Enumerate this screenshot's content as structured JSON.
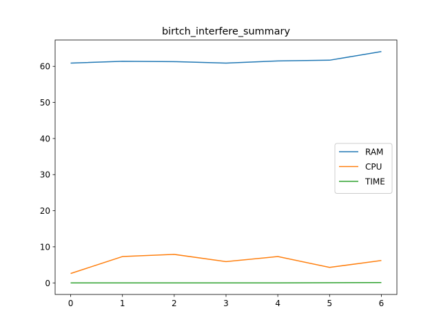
{
  "chart_data": {
    "type": "line",
    "title": "birtch_interfere_summary",
    "xlabel": "",
    "ylabel": "",
    "x": [
      0,
      1,
      2,
      3,
      4,
      5,
      6
    ],
    "xticks": [
      0,
      1,
      2,
      3,
      4,
      5,
      6
    ],
    "yticks": [
      0,
      10,
      20,
      30,
      40,
      50,
      60
    ],
    "xlim": [
      -0.3,
      6.3
    ],
    "ylim": [
      -3.2,
      67.3
    ],
    "grid": false,
    "legend_position": "center-right",
    "series": [
      {
        "name": "RAM",
        "color": "#1f77b4",
        "values": [
          60.9,
          61.4,
          61.3,
          60.9,
          61.5,
          61.7,
          64.1
        ]
      },
      {
        "name": "CPU",
        "color": "#ff7f0e",
        "values": [
          2.6,
          7.3,
          7.9,
          5.9,
          7.3,
          4.3,
          6.2
        ]
      },
      {
        "name": "TIME",
        "color": "#2ca02c",
        "values": [
          0.0,
          0.0,
          0.0,
          0.0,
          0.0,
          0.05,
          0.1
        ]
      }
    ]
  }
}
